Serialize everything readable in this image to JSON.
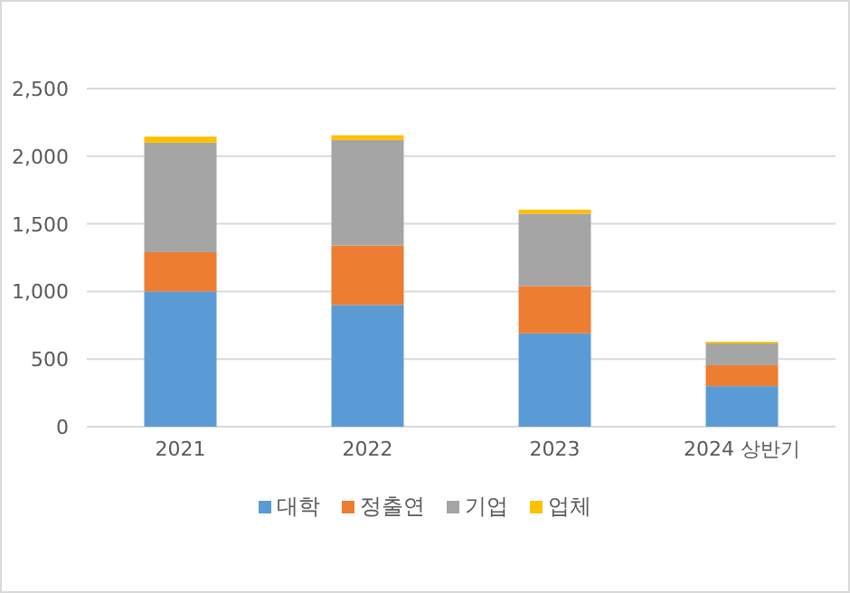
{
  "chart_data": {
    "type": "bar",
    "stacked": true,
    "categories": [
      "2021",
      "2022",
      "2023",
      "2024 상반기"
    ],
    "series": [
      {
        "name": "대학",
        "color": "#5b9bd5",
        "values": [
          1000,
          900,
          690,
          300
        ]
      },
      {
        "name": "정출연",
        "color": "#ed7d31",
        "values": [
          290,
          440,
          350,
          155
        ]
      },
      {
        "name": "기업",
        "color": "#a5a5a5",
        "values": [
          810,
          780,
          535,
          160
        ]
      },
      {
        "name": "업체",
        "color": "#ffc000",
        "values": [
          45,
          35,
          30,
          13
        ]
      }
    ],
    "ylim": [
      0,
      2500
    ],
    "yticks": [
      {
        "value": 0,
        "label": "0"
      },
      {
        "value": 500,
        "label": "500"
      },
      {
        "value": 1000,
        "label": "1,000"
      },
      {
        "value": 1500,
        "label": "1,500"
      },
      {
        "value": 2000,
        "label": "2,000"
      },
      {
        "value": 2500,
        "label": "2,500"
      }
    ],
    "grid": "y",
    "legend": "bottom"
  }
}
